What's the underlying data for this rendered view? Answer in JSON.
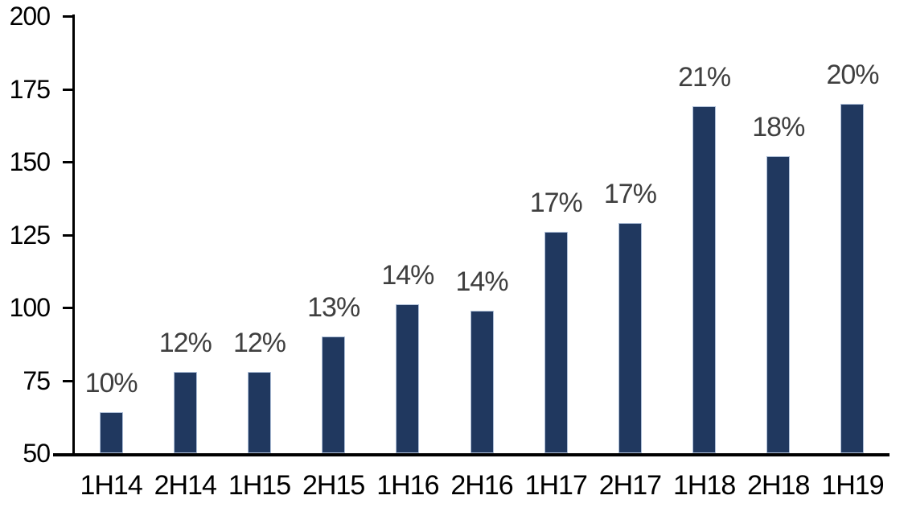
{
  "chart_data": {
    "type": "bar",
    "title": "",
    "xlabel": "",
    "ylabel": "",
    "categories": [
      "1H14",
      "2H14",
      "1H15",
      "2H15",
      "1H16",
      "2H16",
      "1H17",
      "2H17",
      "1H18",
      "2H18",
      "1H19"
    ],
    "values": [
      64,
      78,
      78,
      90,
      101,
      99,
      126,
      129,
      169,
      152,
      170
    ],
    "bar_labels": [
      "10%",
      "12%",
      "12%",
      "13%",
      "14%",
      "14%",
      "17%",
      "17%",
      "21%",
      "18%",
      "20%"
    ],
    "ylim": [
      50,
      200
    ],
    "yticks": [
      50,
      75,
      100,
      125,
      150,
      175,
      200
    ],
    "grid": false,
    "legend": null,
    "colors": {
      "bar_fill": "#20385F",
      "bar_border": "#AEBFD8",
      "value_label": "#3F3F3F",
      "axis": "#000000"
    }
  }
}
